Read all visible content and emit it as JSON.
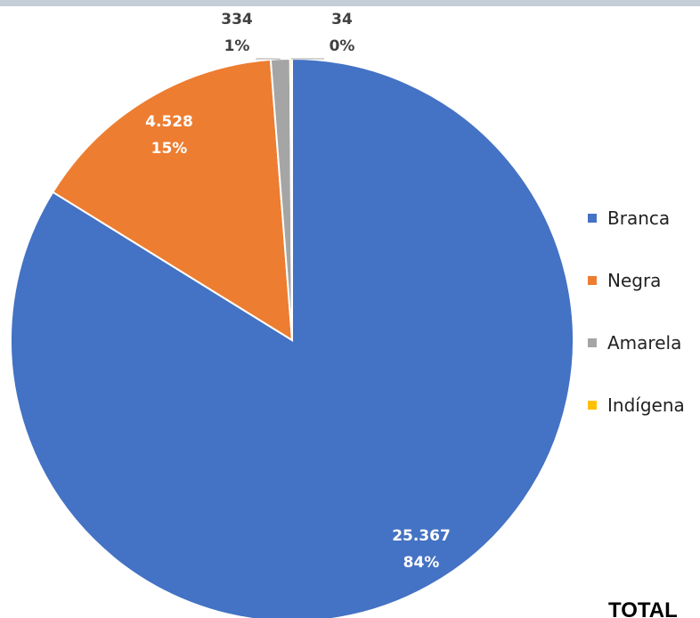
{
  "chart_data": {
    "type": "pie",
    "categories": [
      "Branca",
      "Negra",
      "Amarela",
      "Indígena"
    ],
    "values": [
      25367,
      4528,
      334,
      34
    ],
    "value_labels": [
      "25.367",
      "4.528",
      "334",
      "34"
    ],
    "percent_labels": [
      "84%",
      "15%",
      "1%",
      "0%"
    ],
    "colors": [
      "#4472c4",
      "#ed7d31",
      "#a5a5a5",
      "#ffc000"
    ],
    "legend_position": "right",
    "start_angle": "12 o'clock, clockwise"
  },
  "footer_text": "TOTAL"
}
